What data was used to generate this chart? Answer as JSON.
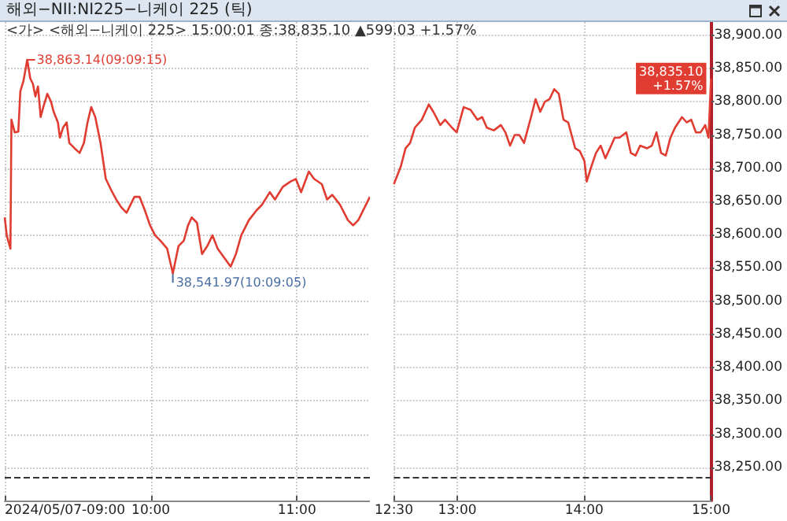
{
  "chart_data": [
    {
      "type": "line",
      "title": "해외−NII:NI225−니케이 225 (틱)",
      "subtitle": "<가> <해외−니케이 225> 15:00:01 종:38,835.10 ▲599.03 +1.57%",
      "x": [
        9.0,
        9.014,
        9.039,
        9.046,
        9.068,
        9.093,
        9.107,
        9.128,
        9.154,
        9.175,
        9.193,
        9.21,
        9.228,
        9.246,
        9.264,
        9.292,
        9.317,
        9.335,
        9.364,
        9.378,
        9.399,
        9.424,
        9.442,
        9.478,
        9.513,
        9.542,
        9.567,
        9.592,
        9.62,
        9.656,
        9.692,
        9.727,
        9.763,
        9.799,
        9.834,
        9.888,
        9.923,
        9.959,
        9.995,
        10.03,
        10.066,
        10.112,
        10.151,
        10.19,
        10.226,
        10.255,
        10.28,
        10.316,
        10.351,
        10.387,
        10.422,
        10.458,
        10.494,
        10.547,
        10.583,
        10.619,
        10.672,
        10.725,
        10.761,
        10.815,
        10.85,
        10.904,
        10.957,
        10.993,
        11.029,
        11.082,
        11.118,
        11.171,
        11.207,
        11.242,
        11.296,
        11.349,
        11.385,
        11.421,
        11.5
      ],
      "series": [
        {
          "color": "#e03c31",
          "values": [
            38626,
            38599,
            38579,
            38773,
            38754,
            38755,
            38816,
            38831,
            38863.14,
            38835,
            38827,
            38808,
            38823,
            38777,
            38792,
            38812,
            38800,
            38785,
            38769,
            38746,
            38761,
            38769,
            38738,
            38730,
            38723,
            38738,
            38769,
            38792,
            38777,
            38738,
            38684,
            38668,
            38653,
            38641,
            38633,
            38657,
            38657,
            38637,
            38614,
            38599,
            38591,
            38579,
            38541.97,
            38583,
            38591,
            38614,
            38626,
            38618,
            38571,
            38583,
            38599,
            38579,
            38568,
            38552,
            38571,
            38599,
            38622,
            38637,
            38645,
            38664,
            38653,
            38672,
            38680,
            38684,
            38664,
            38695,
            38684,
            38676,
            38653,
            38660,
            38645,
            38622,
            38614,
            38622,
            38657
          ]
        }
      ],
      "xlim": [
        9,
        11.5
      ],
      "xticks": [
        {
          "value": 9,
          "label": "2024/05/07-09:00"
        },
        {
          "value": 10,
          "label": "10:00"
        },
        {
          "value": 11,
          "label": "11:00"
        }
      ],
      "ylim": [
        38200,
        38920
      ],
      "yticks": [
        38250,
        38300,
        38350,
        38400,
        38450,
        38500,
        38550,
        38600,
        38650,
        38700,
        38750,
        38800,
        38850,
        38900
      ],
      "tick_labels": "x",
      "ref_lines": [
        {
          "axis": "y",
          "value": 38236.07,
          "color": "#333333",
          "line_style": "dashed"
        }
      ],
      "annotations": [
        {
          "text": "38,863.14(09:09:15)",
          "x": 9.154,
          "y": 38863.14
        },
        {
          "text": "38,541.97(10:09:05)",
          "x": 10.151,
          "y": 38541.97
        }
      ],
      "grid": true,
      "marker": "none",
      "line_style": "solid"
    },
    {
      "type": "line",
      "x": [
        12.5,
        12.555,
        12.592,
        12.628,
        12.665,
        12.72,
        12.775,
        12.811,
        12.866,
        12.903,
        12.958,
        12.995,
        13.05,
        13.104,
        13.159,
        13.196,
        13.233,
        13.288,
        13.343,
        13.379,
        13.416,
        13.452,
        13.489,
        13.526,
        13.581,
        13.617,
        13.654,
        13.69,
        13.727,
        13.764,
        13.8,
        13.837,
        13.874,
        13.929,
        13.965,
        14.002,
        14.02,
        14.057,
        14.093,
        14.13,
        14.167,
        14.203,
        14.24,
        14.277,
        14.332,
        14.368,
        14.405,
        14.441,
        14.496,
        14.533,
        14.57,
        14.606,
        14.643,
        14.68,
        14.716,
        14.771,
        14.808,
        14.844,
        14.881,
        14.918,
        14.954,
        14.98,
        15.0
      ],
      "series": [
        {
          "color": "#e03c31",
          "values": [
            38676,
            38703,
            38730,
            38738,
            38761,
            38773,
            38796,
            38785,
            38765,
            38773,
            38761,
            38754,
            38792,
            38788,
            38773,
            38777,
            38761,
            38757,
            38765,
            38754,
            38734,
            38750,
            38750,
            38738,
            38777,
            38804,
            38785,
            38800,
            38804,
            38819,
            38812,
            38773,
            38769,
            38730,
            38726,
            38711,
            38680,
            38703,
            38723,
            38734,
            38715,
            38730,
            38746,
            38746,
            38754,
            38723,
            38719,
            38734,
            38730,
            38734,
            38754,
            38723,
            38719,
            38746,
            38761,
            38777,
            38769,
            38773,
            38754,
            38754,
            38765,
            38746,
            38835.1
          ]
        }
      ],
      "xlim": [
        12.5,
        15
      ],
      "xticks": [
        {
          "value": 12.5,
          "label": "12:30"
        },
        {
          "value": 13,
          "label": "13:00"
        },
        {
          "value": 14,
          "label": "14:00"
        },
        {
          "value": 15,
          "label": "15:00"
        }
      ],
      "ylim": [
        38200,
        38920
      ],
      "yticks": [
        {
          "value": 38250,
          "label": "38,250.00"
        },
        {
          "value": 38300,
          "label": "38,300.00"
        },
        {
          "value": 38350,
          "label": "38,350.00"
        },
        {
          "value": 38400,
          "label": "38,400.00"
        },
        {
          "value": 38450,
          "label": "38,450.00"
        },
        {
          "value": 38500,
          "label": "38,500.00"
        },
        {
          "value": 38550,
          "label": "38,550.00"
        },
        {
          "value": 38600,
          "label": "38,600.00"
        },
        {
          "value": 38650,
          "label": "38,650.00"
        },
        {
          "value": 38700,
          "label": "38,700.00"
        },
        {
          "value": 38750,
          "label": "38,750.00"
        },
        {
          "value": 38800,
          "label": "38,800.00"
        },
        {
          "value": 38850,
          "label": "38,850.00"
        },
        {
          "value": 38900,
          "label": "38,900.00"
        }
      ],
      "ref_lines": [
        {
          "axis": "y",
          "value": 38236.07,
          "color": "#333333",
          "line_style": "dashed"
        }
      ],
      "annotations": [
        {
          "text": "38,835.10 +1.57%",
          "x": 15.0,
          "y": 38835.1
        }
      ],
      "grid": true,
      "marker": "none",
      "line_style": "solid"
    }
  ]
}
